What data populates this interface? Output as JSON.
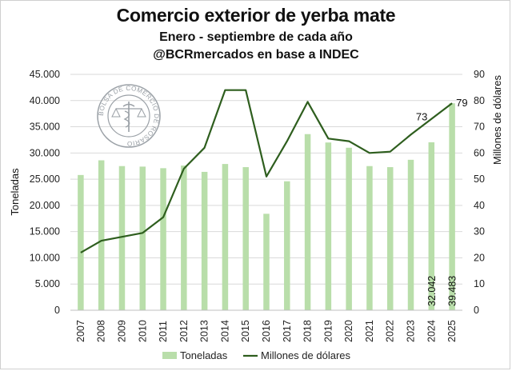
{
  "chart_data": {
    "type": "bar+line",
    "title": "Comercio exterior de yerba mate",
    "subtitle_lines": [
      "Enero - septiembre de cada año",
      "@BCRmercados en base a INDEC"
    ],
    "categories": [
      "2007",
      "2008",
      "2009",
      "2010",
      "2011",
      "2012",
      "2013",
      "2014",
      "2015",
      "2016",
      "2017",
      "2018",
      "2019",
      "2020",
      "2021",
      "2022",
      "2023",
      "2024",
      "2025"
    ],
    "series": [
      {
        "name": "Toneladas",
        "type": "bar",
        "axis": "left",
        "color": "#b9deaa",
        "values": [
          25800,
          28600,
          27500,
          27400,
          27100,
          27600,
          26400,
          27900,
          27300,
          18400,
          24600,
          33600,
          32000,
          31000,
          27500,
          27300,
          28700,
          32042,
          39483
        ]
      },
      {
        "name": "Millones de dólares",
        "type": "line",
        "axis": "right",
        "color": "#2e5e1e",
        "values": [
          22,
          26.5,
          28,
          29.5,
          35.5,
          54,
          62,
          84,
          84,
          51,
          64.5,
          79.5,
          65.5,
          64.5,
          60,
          60.5,
          67,
          73,
          79
        ]
      }
    ],
    "y_left": {
      "label": "Toneladas",
      "ylim": [
        0,
        45000
      ],
      "ticks": [
        "0",
        "5.000",
        "10.000",
        "15.000",
        "20.000",
        "25.000",
        "30.000",
        "35.000",
        "40.000",
        "45.000"
      ]
    },
    "y_right": {
      "label": "Millones de dólares",
      "ylim": [
        0,
        90
      ],
      "ticks": [
        "0",
        "10",
        "20",
        "30",
        "40",
        "50",
        "60",
        "70",
        "80",
        "90"
      ]
    },
    "grid": true,
    "legend": "bottom",
    "data_labels": {
      "bars": [
        {
          "index": 17,
          "text": "32.042"
        },
        {
          "index": 18,
          "text": "39.483"
        }
      ],
      "line": [
        {
          "index": 17,
          "text": "73"
        },
        {
          "index": 18,
          "text": "79"
        }
      ]
    },
    "logo": {
      "text": "BOLSA DE COMERCIO DE ROSARIO",
      "color": "#9aa0a6"
    }
  }
}
